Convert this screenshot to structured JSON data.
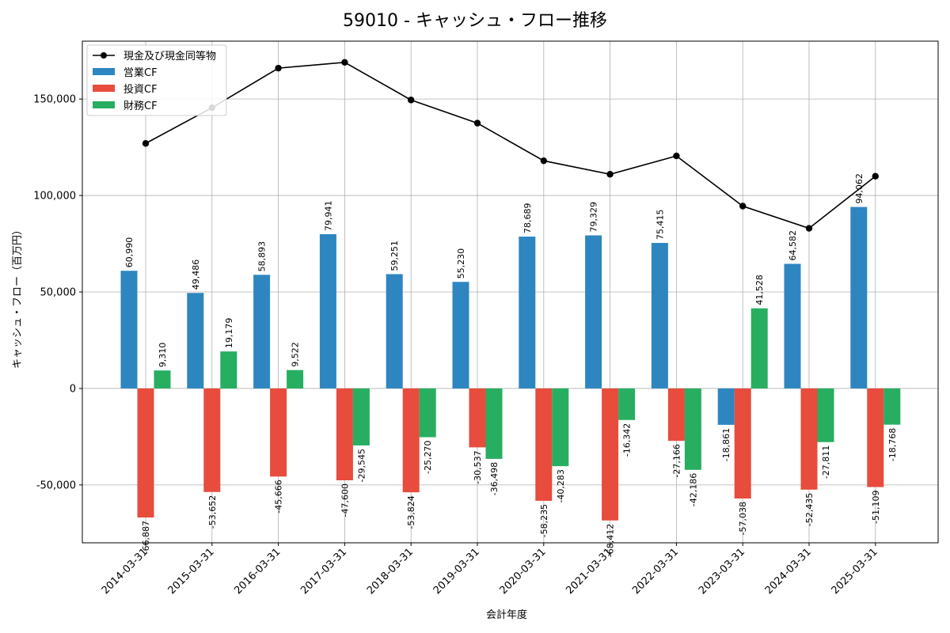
{
  "chart_data": {
    "type": "bar",
    "title": "59010 - キャッシュ・フロー推移",
    "xlabel": "会計年度",
    "ylabel": "キャッシュ・フロー（百万円）",
    "ylim": [
      -80000,
      180000
    ],
    "yticks": [
      -50000,
      0,
      50000,
      100000,
      150000
    ],
    "ytick_labels": [
      "-50,000",
      "0",
      "50,000",
      "100,000",
      "150,000"
    ],
    "grid": true,
    "legend_position": "top-left",
    "categories": [
      "2014-03-31",
      "2015-03-31",
      "2016-03-31",
      "2017-03-31",
      "2018-03-31",
      "2019-03-31",
      "2020-03-31",
      "2021-03-31",
      "2022-03-31",
      "2023-03-31",
      "2024-03-31",
      "2025-03-31"
    ],
    "series": [
      {
        "name": "営業CF",
        "color": "#2e86c1",
        "values": [
          60990,
          49486,
          58893,
          79941,
          59251,
          55230,
          78689,
          79329,
          75415,
          -18861,
          64582,
          94062
        ],
        "labels": [
          "60,990",
          "49,486",
          "58,893",
          "79,941",
          "59,251",
          "55,230",
          "78,689",
          "79,329",
          "75,415",
          "-18,861",
          "64,582",
          "94,062"
        ]
      },
      {
        "name": "投資CF",
        "color": "#e74c3c",
        "values": [
          -66887,
          -53652,
          -45666,
          -47600,
          -53824,
          -30537,
          -58235,
          -68412,
          -27166,
          -57038,
          -52435,
          -51109
        ],
        "labels": [
          "-66,887",
          "-53,652",
          "-45,666",
          "-47,600",
          "-53,824",
          "-30,537",
          "-58,235",
          "-68,412",
          "-27,166",
          "-57,038",
          "-52,435",
          "-51,109"
        ]
      },
      {
        "name": "財務CF",
        "color": "#27ae60",
        "values": [
          9310,
          19179,
          9522,
          -29545,
          -25270,
          -36498,
          -40283,
          -16342,
          -42186,
          41528,
          -27811,
          -18768
        ],
        "labels": [
          "9,310",
          "19,179",
          "9,522",
          "-29,545",
          "-25,270",
          "-36,498",
          "-40,283",
          "-16,342",
          "-42,186",
          "41,528",
          "-27,811",
          "-18,768"
        ]
      }
    ],
    "line": {
      "name": "現金及び現金同等物",
      "color": "#000000",
      "values": [
        127000,
        145500,
        166000,
        169000,
        149500,
        137500,
        118000,
        111000,
        120500,
        94500,
        83000,
        110000
      ]
    }
  }
}
